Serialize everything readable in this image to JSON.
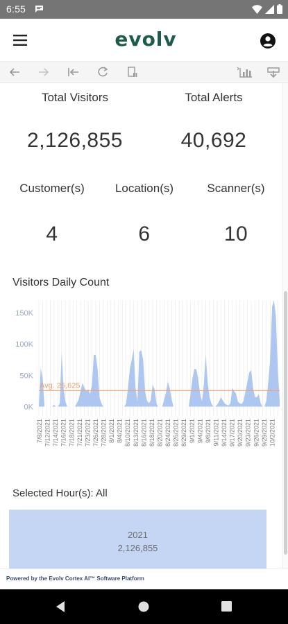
{
  "status": {
    "time": "6:55"
  },
  "app": {
    "logo_text": "evolv"
  },
  "kpis_top": [
    {
      "label": "Total Visitors",
      "value": "2,126,855"
    },
    {
      "label": "Total Alerts",
      "value": "40,692"
    }
  ],
  "kpis_mid": [
    {
      "label": "Customer(s)",
      "value": "4"
    },
    {
      "label": "Location(s)",
      "value": "6"
    },
    {
      "label": "Scanner(s)",
      "value": "10"
    }
  ],
  "chart_section": {
    "title": "Visitors Daily Count"
  },
  "chart_data": {
    "type": "area",
    "ylim": [
      -15000,
      170000
    ],
    "yticks": [
      {
        "label": "150K",
        "value": 150000
      },
      {
        "label": "100K",
        "value": 100000
      },
      {
        "label": "50K",
        "value": 50000
      },
      {
        "label": "0K",
        "value": 0
      }
    ],
    "xtick_labels": [
      "7/8/2021",
      "7/12/2021",
      "7/14/2021",
      "7/16/2021",
      "7/18/2021",
      "7/21/2021",
      "7/23/2021",
      "7/26/2021",
      "7/28/2021",
      "8/1/2021",
      "8/4/2021",
      "8/10/2021",
      "8/13/2021",
      "8/16/2021",
      "8/18/2021",
      "8/20/2021",
      "8/24/2021",
      "8/26/2021",
      "8/29/2021",
      "9/1/2021",
      "9/4/2021",
      "9/8/2021",
      "9/11/2021",
      "9/14/2021",
      "9/17/2021",
      "9/20/2021",
      "9/23/2021",
      "9/26/2021",
      "9/29/2021",
      "10/2/2021"
    ],
    "values": [
      0,
      62000,
      45000,
      0,
      0,
      0,
      0,
      0,
      3000,
      0,
      0,
      5000,
      88000,
      30000,
      8000,
      0,
      0,
      0,
      0,
      0,
      5000,
      12000,
      25000,
      38000,
      30000,
      25000,
      28000,
      20000,
      35000,
      83000,
      82000,
      60000,
      15000,
      5000,
      0,
      0,
      0,
      0,
      0,
      0,
      0,
      0,
      0,
      0,
      0,
      0,
      5000,
      30000,
      60000,
      75000,
      92000,
      30000,
      8000,
      88000,
      90000,
      75000,
      25000,
      10000,
      5000,
      10000,
      35000,
      28000,
      5000,
      0,
      0,
      0,
      10000,
      22000,
      40000,
      30000,
      12000,
      0,
      0,
      0,
      0,
      0,
      0,
      0,
      0,
      0,
      20000,
      45000,
      60000,
      60000,
      45000,
      22000,
      8000,
      35000,
      84000,
      40000,
      15000,
      5000,
      0,
      0,
      3000,
      8000,
      15000,
      10000,
      5000,
      3000,
      2000,
      5000,
      30000,
      25000,
      20000,
      8000,
      5000,
      4000,
      10000,
      25000,
      40000,
      55000,
      58000,
      30000,
      15000,
      15000,
      20000,
      5000,
      0,
      0,
      10000,
      40000,
      75000,
      160000,
      170000,
      145000,
      60000,
      10000
    ],
    "average": {
      "label": "Avg. 25,625",
      "value": 25625
    },
    "colors": {
      "area": "#aec7f0",
      "average_line": "#f0a070",
      "grid": "#e6e6e6",
      "tick_text": "#9aa9c9"
    }
  },
  "hour_section": {
    "title": "Selected Hour(s): All"
  },
  "year_summary": {
    "year": "2021",
    "count": "2,126,855"
  },
  "footer": {
    "text": "Powered by the Evolv Cortex AI™ Software Platform"
  },
  "icons": {
    "menu": "menu-icon",
    "account": "account-icon",
    "toolbar": [
      "back-icon",
      "forward-icon",
      "first-page-icon",
      "refresh-icon",
      "pause-refresh-icon",
      "chart-data-icon",
      "share-icon"
    ],
    "nav": [
      "nav-back-icon",
      "nav-home-icon",
      "nav-recents-icon"
    ]
  }
}
